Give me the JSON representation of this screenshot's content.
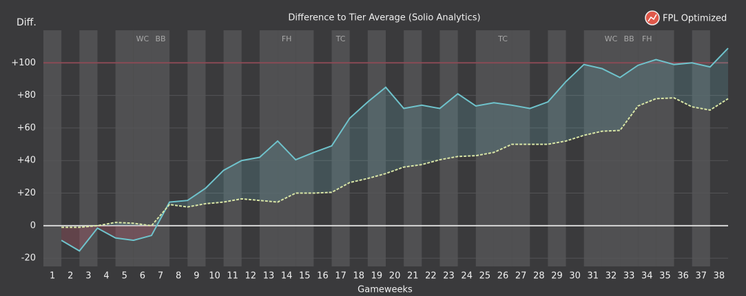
{
  "chart_data": {
    "type": "line",
    "title": "Difference to Tier Average (Solio Analytics)",
    "ylabel": "Diff.",
    "xlabel": "Gameweeks",
    "brand": "FPL Optimized",
    "categories": [
      "1",
      "2",
      "3",
      "4",
      "5",
      "6",
      "7",
      "8",
      "9",
      "10",
      "11",
      "12",
      "13",
      "14",
      "15",
      "16",
      "17",
      "18",
      "19",
      "20",
      "21",
      "22",
      "23",
      "24",
      "25",
      "26",
      "27",
      "28",
      "29",
      "30",
      "31",
      "32",
      "33",
      "34",
      "35",
      "36",
      "37",
      "38"
    ],
    "series": [
      {
        "color": "#6fc3cc",
        "style": "solid",
        "values": [
          -9,
          -15.5,
          -1.5,
          -7.5,
          -9,
          -6,
          14.5,
          15.5,
          23,
          34,
          40,
          42,
          52,
          40.5,
          45,
          49,
          66,
          76,
          85,
          72,
          74,
          72,
          81,
          73.5,
          75.5,
          74,
          72,
          76,
          88.5,
          99,
          96.5,
          91,
          98.5,
          102,
          99,
          100,
          97.5,
          109
        ]
      },
      {
        "color": "#d9e6a6",
        "style": "dashed",
        "values": [
          -1,
          -1,
          0,
          2,
          1.5,
          0,
          13,
          11.5,
          13.5,
          14.5,
          16.5,
          15.5,
          14.5,
          20,
          20,
          20.5,
          26.5,
          29,
          32,
          36,
          37.5,
          40.5,
          42.5,
          43,
          45,
          50,
          50,
          50,
          52,
          55.5,
          58,
          58.5,
          73.5,
          78,
          78.5,
          73,
          71,
          78
        ]
      }
    ],
    "chips": [
      {
        "label": "WC",
        "gameweek": 6
      },
      {
        "label": "BB",
        "gameweek": 7
      },
      {
        "label": "FH",
        "gameweek": 14
      },
      {
        "label": "TC",
        "gameweek": 17
      },
      {
        "label": "TC",
        "gameweek": 26
      },
      {
        "label": "WC",
        "gameweek": 32
      },
      {
        "label": "BB",
        "gameweek": 33
      },
      {
        "label": "FH",
        "gameweek": 34
      }
    ],
    "reference_line": {
      "value": 100,
      "color": "#8a4a55"
    },
    "ylim": [
      -25,
      120
    ],
    "yticks": [
      -20,
      0,
      {
        "value": 20,
        "label": "+20"
      },
      {
        "value": 40,
        "label": "+40"
      },
      {
        "value": 60,
        "label": "+60"
      },
      {
        "value": 80,
        "label": "+80"
      },
      {
        "value": 100,
        "label": "+100"
      }
    ],
    "grid": true
  }
}
